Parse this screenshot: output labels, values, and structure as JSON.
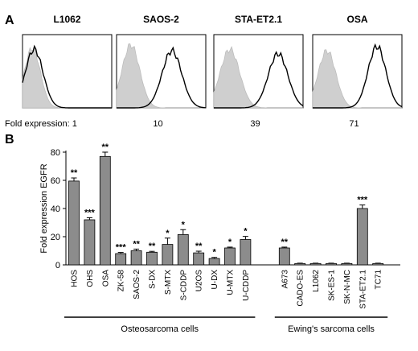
{
  "panel_a": {
    "letter": "A",
    "fold_prefix": "Fold expression: ",
    "histograms": [
      {
        "title": "L1062",
        "fold": "1"
      },
      {
        "title": "SAOS-2",
        "fold": "10"
      },
      {
        "title": "STA-ET2.1",
        "fold": "39"
      },
      {
        "title": "OSA",
        "fold": "71"
      }
    ]
  },
  "panel_b": {
    "letter": "B"
  },
  "chart_data": {
    "type": "bar",
    "ylabel": "Fold expression EGFR",
    "ylim": [
      0,
      80
    ],
    "yticks": [
      0,
      20,
      40,
      60,
      80
    ],
    "bar_color": "#8c8c8c",
    "categories": [
      "HOS",
      "OHS",
      "OSA",
      "ZK-58",
      "SAOS-2",
      "S-DX",
      "S-MTX",
      "S-CDDP",
      "U2OS",
      "U-DX",
      "U-MTX",
      "U-CDDP",
      "A673",
      "CADO-ES",
      "L1062",
      "SK-ES-1",
      "SK-N-MC",
      "STA-ET2.1",
      "TC71"
    ],
    "values": [
      59.5,
      32,
      77,
      8,
      10,
      9,
      14.5,
      21.5,
      8.5,
      4.5,
      12,
      18,
      12,
      1,
      1,
      1,
      1,
      40,
      1
    ],
    "errors": [
      2.2,
      1.5,
      3,
      0.8,
      1.2,
      0.6,
      4.5,
      3.5,
      1.2,
      0.8,
      0.6,
      2.2,
      0.6,
      0.2,
      0.2,
      0.2,
      0.2,
      2.5,
      0.2
    ],
    "significance": [
      "**",
      "***",
      "**",
      "***",
      "**",
      "**",
      "*",
      "*",
      "**",
      "*",
      "*",
      "*",
      "**",
      "",
      "",
      "",
      "",
      "***",
      ""
    ],
    "groups": [
      {
        "label": "Osteosarcoma cells",
        "start": 0,
        "end": 11
      },
      {
        "label": "Ewing's sarcoma cells",
        "start": 12,
        "end": 18
      }
    ]
  }
}
